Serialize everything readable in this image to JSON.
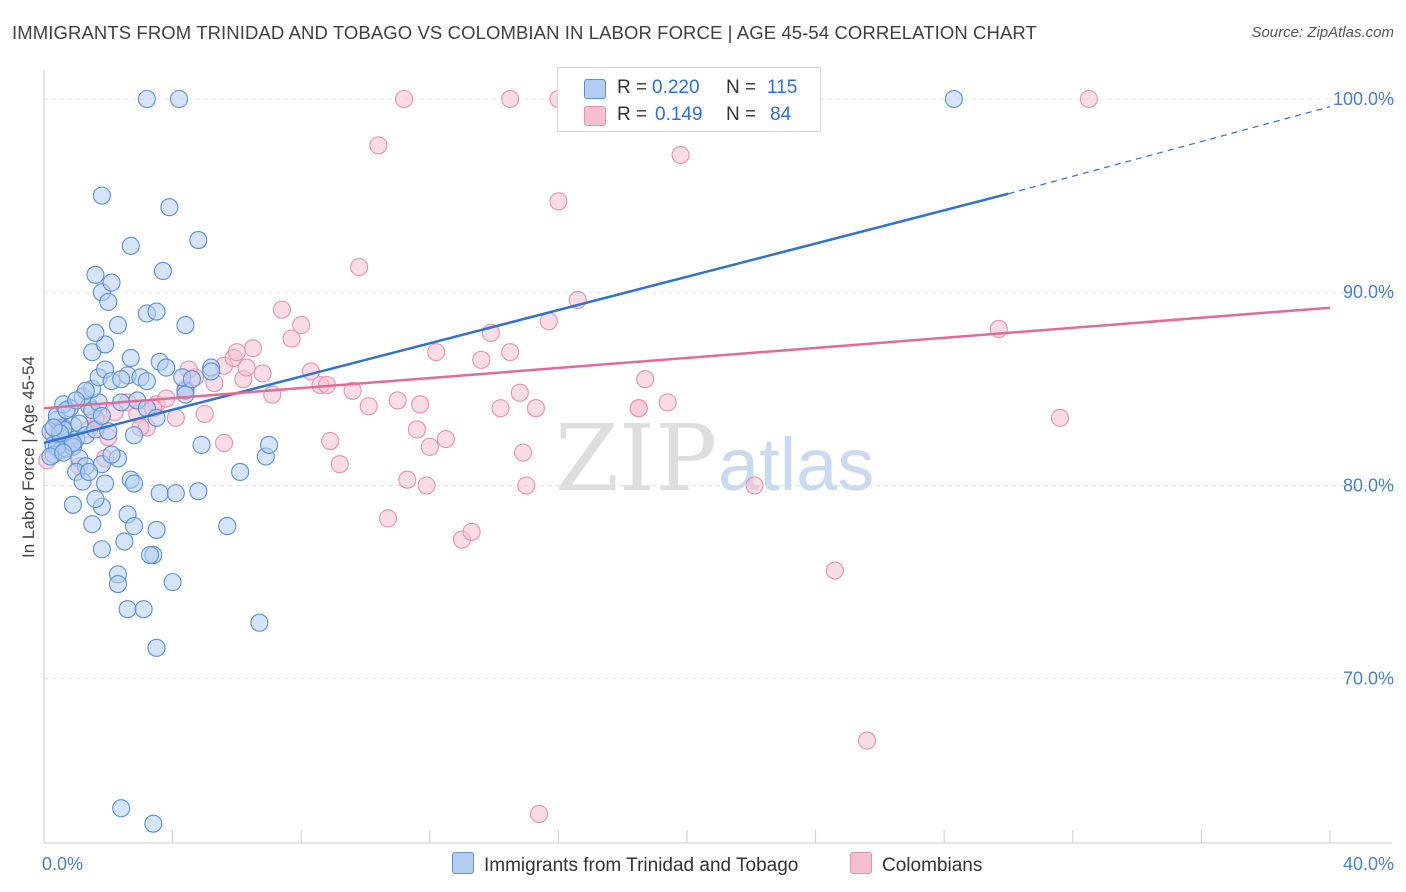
{
  "header": {
    "title": "IMMIGRANTS FROM TRINIDAD AND TOBAGO VS COLOMBIAN IN LABOR FORCE | AGE 45-54 CORRELATION CHART",
    "source": "Source: ZipAtlas.com"
  },
  "watermark": {
    "zip": "ZIP",
    "atlas": "atlas"
  },
  "legend": {
    "rows": [
      {
        "r_label": "R =",
        "r_value": "0.220",
        "n_label": "N =",
        "n_value": "115"
      },
      {
        "r_label": "R =",
        "r_value": "0.149",
        "n_label": "N =",
        "n_value": "84"
      }
    ]
  },
  "colors": {
    "blue_fill": "#b3cdf2",
    "blue_stroke": "#5b8fd8",
    "blue_line": "#2f72d0",
    "pink_fill": "#f5bfd2",
    "pink_stroke": "#e591b0",
    "pink_line": "#e26a96",
    "tick_text": "#4a7fc8"
  },
  "chart_data": {
    "type": "scatter",
    "title": "IMMIGRANTS FROM TRINIDAD AND TOBAGO VS COLOMBIAN IN LABOR FORCE | AGE 45-54 CORRELATION CHART",
    "xlabel": "",
    "ylabel": "In Labor Force | Age 45-54",
    "xlim": [
      0,
      40
    ],
    "ylim": [
      61.5,
      101.5
    ],
    "x_ticks": [
      {
        "value": 0,
        "label": "0.0%"
      },
      {
        "value": 40,
        "label": "40.0%"
      }
    ],
    "y_ticks": [
      {
        "value": 100,
        "label": "100.0%"
      },
      {
        "value": 90,
        "label": "90.0%"
      },
      {
        "value": 80,
        "label": "80.0%"
      },
      {
        "value": 70,
        "label": "70.0%"
      }
    ],
    "grid": "horizontal dashed",
    "legend_position": "top-center",
    "series": [
      {
        "name": "Immigrants from Trinidad and Tobago",
        "color": "#5b8fd8",
        "R": 0.22,
        "N": 115,
        "trend": {
          "x": [
            0,
            30,
            40
          ],
          "y": [
            82.2,
            95.1,
            99.6
          ],
          "solid_until": 30
        },
        "points": [
          [
            0.2,
            82.8
          ],
          [
            0.3,
            82.1
          ],
          [
            0.4,
            83.4
          ],
          [
            0.5,
            82.6
          ],
          [
            0.6,
            83.0
          ],
          [
            0.7,
            82.3
          ],
          [
            0.5,
            81.8
          ],
          [
            0.8,
            82.5
          ],
          [
            0.9,
            83.1
          ],
          [
            0.3,
            81.6
          ],
          [
            0.6,
            82.9
          ],
          [
            1.0,
            82.4
          ],
          [
            0.4,
            83.6
          ],
          [
            0.7,
            81.9
          ],
          [
            0.9,
            82.0
          ],
          [
            1.1,
            83.2
          ],
          [
            0.8,
            84.0
          ],
          [
            0.6,
            84.2
          ],
          [
            1.2,
            84.6
          ],
          [
            1.4,
            84.1
          ],
          [
            1.5,
            83.9
          ],
          [
            1.7,
            84.3
          ],
          [
            1.3,
            82.6
          ],
          [
            1.6,
            82.9
          ],
          [
            1.8,
            83.6
          ],
          [
            2.0,
            82.8
          ],
          [
            1.1,
            81.4
          ],
          [
            1.3,
            81.0
          ],
          [
            1.0,
            80.7
          ],
          [
            1.2,
            80.2
          ],
          [
            1.9,
            80.1
          ],
          [
            2.3,
            81.4
          ],
          [
            1.8,
            81.1
          ],
          [
            2.1,
            81.6
          ],
          [
            1.4,
            80.7
          ],
          [
            1.5,
            85.0
          ],
          [
            1.7,
            85.6
          ],
          [
            1.9,
            86.0
          ],
          [
            2.1,
            85.4
          ],
          [
            2.4,
            84.3
          ],
          [
            1.5,
            86.9
          ],
          [
            1.9,
            87.3
          ],
          [
            1.6,
            87.9
          ],
          [
            2.3,
            88.3
          ],
          [
            1.8,
            90.0
          ],
          [
            2.0,
            89.5
          ],
          [
            2.1,
            90.5
          ],
          [
            1.6,
            90.9
          ],
          [
            2.7,
            86.6
          ],
          [
            2.6,
            85.7
          ],
          [
            3.0,
            85.6
          ],
          [
            2.4,
            85.5
          ],
          [
            2.9,
            84.4
          ],
          [
            2.8,
            82.6
          ],
          [
            3.2,
            84.0
          ],
          [
            3.5,
            83.5
          ],
          [
            3.6,
            86.4
          ],
          [
            3.8,
            86.1
          ],
          [
            3.2,
            85.4
          ],
          [
            4.4,
            84.9
          ],
          [
            4.3,
            85.6
          ],
          [
            5.2,
            86.1
          ],
          [
            4.4,
            88.3
          ],
          [
            3.2,
            88.9
          ],
          [
            3.5,
            89.0
          ],
          [
            3.7,
            91.1
          ],
          [
            4.8,
            92.7
          ],
          [
            2.7,
            92.4
          ],
          [
            1.8,
            95.0
          ],
          [
            3.9,
            94.4
          ],
          [
            3.2,
            100.0
          ],
          [
            4.2,
            100.0
          ],
          [
            28.3,
            100.0
          ],
          [
            0.9,
            79.0
          ],
          [
            1.5,
            78.0
          ],
          [
            1.8,
            78.9
          ],
          [
            1.6,
            79.3
          ],
          [
            2.6,
            78.5
          ],
          [
            2.8,
            77.9
          ],
          [
            3.5,
            77.7
          ],
          [
            2.5,
            77.1
          ],
          [
            1.8,
            76.7
          ],
          [
            3.4,
            76.4
          ],
          [
            3.3,
            76.4
          ],
          [
            2.3,
            75.4
          ],
          [
            2.3,
            74.9
          ],
          [
            4.0,
            75.0
          ],
          [
            2.6,
            73.6
          ],
          [
            3.1,
            73.6
          ],
          [
            3.5,
            71.6
          ],
          [
            6.7,
            72.9
          ],
          [
            5.7,
            77.9
          ],
          [
            3.6,
            79.6
          ],
          [
            4.1,
            79.6
          ],
          [
            4.8,
            79.7
          ],
          [
            2.7,
            80.3
          ],
          [
            2.8,
            80.1
          ],
          [
            6.1,
            80.7
          ],
          [
            6.9,
            81.5
          ],
          [
            7.0,
            82.1
          ],
          [
            4.9,
            82.1
          ],
          [
            4.4,
            84.7
          ],
          [
            4.6,
            85.5
          ],
          [
            5.2,
            85.9
          ],
          [
            1.3,
            84.9
          ],
          [
            0.7,
            83.9
          ],
          [
            0.4,
            82.0
          ],
          [
            0.2,
            81.5
          ],
          [
            0.5,
            82.7
          ],
          [
            0.9,
            82.2
          ],
          [
            2.4,
            63.3
          ],
          [
            3.4,
            62.5
          ],
          [
            0.3,
            83.0
          ],
          [
            0.6,
            81.7
          ],
          [
            1.0,
            84.4
          ]
        ]
      },
      {
        "name": "Colombians",
        "color": "#e591b0",
        "R": 0.149,
        "N": 84,
        "trend": {
          "x": [
            0,
            40
          ],
          "y": [
            84.0,
            89.2
          ]
        },
        "points": [
          [
            0.1,
            81.3
          ],
          [
            0.3,
            82.6
          ],
          [
            0.5,
            83.0
          ],
          [
            0.8,
            82.1
          ],
          [
            1.1,
            81.0
          ],
          [
            1.4,
            82.9
          ],
          [
            1.7,
            83.3
          ],
          [
            1.9,
            81.4
          ],
          [
            2.2,
            83.8
          ],
          [
            2.6,
            84.3
          ],
          [
            2.9,
            83.7
          ],
          [
            3.2,
            83.0
          ],
          [
            3.5,
            84.2
          ],
          [
            3.8,
            84.5
          ],
          [
            4.1,
            83.5
          ],
          [
            4.4,
            85.0
          ],
          [
            4.7,
            85.6
          ],
          [
            5.0,
            83.7
          ],
          [
            5.3,
            85.3
          ],
          [
            5.6,
            86.2
          ],
          [
            5.9,
            86.6
          ],
          [
            6.2,
            85.5
          ],
          [
            6.5,
            87.1
          ],
          [
            6.8,
            85.8
          ],
          [
            7.1,
            84.7
          ],
          [
            7.4,
            89.1
          ],
          [
            7.7,
            87.6
          ],
          [
            8.0,
            88.3
          ],
          [
            8.3,
            85.9
          ],
          [
            8.6,
            85.2
          ],
          [
            8.9,
            82.3
          ],
          [
            9.2,
            81.1
          ],
          [
            9.6,
            84.9
          ],
          [
            9.8,
            91.3
          ],
          [
            10.1,
            84.1
          ],
          [
            10.4,
            97.6
          ],
          [
            10.7,
            78.3
          ],
          [
            11.0,
            84.4
          ],
          [
            11.3,
            80.3
          ],
          [
            11.6,
            82.9
          ],
          [
            11.9,
            80.0
          ],
          [
            12.2,
            86.9
          ],
          [
            12.5,
            82.4
          ],
          [
            11.7,
            84.2
          ],
          [
            13.0,
            77.2
          ],
          [
            13.3,
            77.6
          ],
          [
            13.6,
            86.5
          ],
          [
            13.9,
            87.9
          ],
          [
            14.2,
            84.0
          ],
          [
            14.5,
            86.9
          ],
          [
            14.8,
            84.8
          ],
          [
            14.9,
            81.7
          ],
          [
            15.0,
            80.0
          ],
          [
            15.3,
            84.0
          ],
          [
            15.7,
            88.5
          ],
          [
            16.0,
            94.7
          ],
          [
            16.6,
            89.6
          ],
          [
            17.0,
            100.0
          ],
          [
            18.5,
            84.0
          ],
          [
            18.7,
            85.5
          ],
          [
            19.4,
            84.3
          ],
          [
            19.8,
            97.1
          ],
          [
            22.1,
            80.0
          ],
          [
            24.6,
            75.6
          ],
          [
            25.6,
            66.8
          ],
          [
            29.7,
            88.1
          ],
          [
            31.6,
            83.5
          ],
          [
            16.0,
            100.0
          ],
          [
            14.5,
            100.0
          ],
          [
            11.2,
            100.0
          ],
          [
            22.0,
            100.0
          ],
          [
            32.5,
            100.0
          ],
          [
            15.4,
            63.0
          ],
          [
            18.5,
            84.0
          ],
          [
            3.0,
            83.0
          ],
          [
            3.4,
            84.0
          ],
          [
            5.6,
            82.2
          ],
          [
            6.3,
            86.1
          ],
          [
            2.0,
            82.5
          ],
          [
            1.6,
            83.5
          ],
          [
            4.5,
            86.0
          ],
          [
            6.0,
            86.9
          ],
          [
            8.8,
            85.2
          ],
          [
            12.0,
            82.0
          ]
        ]
      }
    ]
  },
  "bottom_legend": {
    "items": [
      {
        "label": "Immigrants from Trinidad and Tobago"
      },
      {
        "label": "Colombians"
      }
    ]
  }
}
